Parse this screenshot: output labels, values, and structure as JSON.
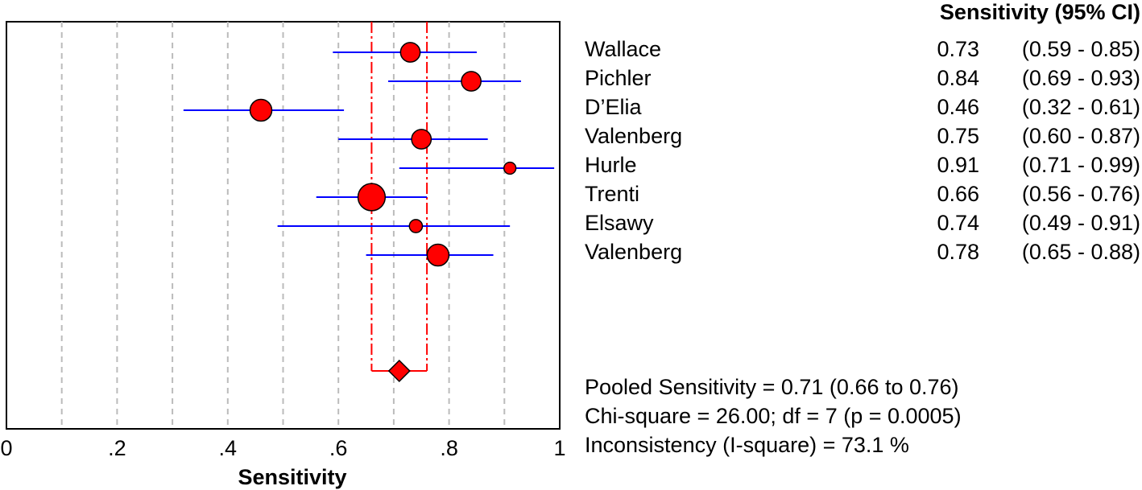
{
  "chart_data": {
    "type": "forest",
    "xlabel": "Sensitivity",
    "xlim": [
      0,
      1
    ],
    "x_ticks": [
      0,
      0.2,
      0.4,
      0.6,
      0.8,
      1
    ],
    "x_tick_labels": [
      "0",
      ".2",
      ".4",
      ".6",
      ".8",
      "1"
    ],
    "gridlines": [
      0.1,
      0.2,
      0.3,
      0.4,
      0.5,
      0.6,
      0.7,
      0.8,
      0.9
    ],
    "colors": {
      "point": "#ff0000",
      "ci_line": "#0000ff",
      "pooled": "#ff0000",
      "grid": "#bbbbbb"
    },
    "studies": [
      {
        "name": "Wallace",
        "estimate": 0.73,
        "lower": 0.59,
        "upper": 0.85,
        "estimate_label": "0.73",
        "ci_label": "(0.59 - 0.85)",
        "weight": 0.9
      },
      {
        "name": "Pichler",
        "estimate": 0.84,
        "lower": 0.69,
        "upper": 0.93,
        "estimate_label": "0.84",
        "ci_label": "(0.69 - 0.93)",
        "weight": 0.9
      },
      {
        "name": "D’Elia",
        "estimate": 0.46,
        "lower": 0.32,
        "upper": 0.61,
        "estimate_label": "0.46",
        "ci_label": "(0.32 - 0.61)",
        "weight": 1.0
      },
      {
        "name": "Valenberg",
        "estimate": 0.75,
        "lower": 0.6,
        "upper": 0.87,
        "estimate_label": "0.75",
        "ci_label": "(0.60 - 0.87)",
        "weight": 0.9
      },
      {
        "name": "Hurle",
        "estimate": 0.91,
        "lower": 0.71,
        "upper": 0.99,
        "estimate_label": "0.91",
        "ci_label": "(0.71 - 0.99)",
        "weight": 0.55
      },
      {
        "name": "Trenti",
        "estimate": 0.66,
        "lower": 0.56,
        "upper": 0.76,
        "estimate_label": "0.66",
        "ci_label": "(0.56 - 0.76)",
        "weight": 1.25
      },
      {
        "name": "Elsawy",
        "estimate": 0.74,
        "lower": 0.49,
        "upper": 0.91,
        "estimate_label": "0.74",
        "ci_label": "(0.49 - 0.91)",
        "weight": 0.6
      },
      {
        "name": "Valenberg",
        "estimate": 0.78,
        "lower": 0.65,
        "upper": 0.88,
        "estimate_label": "0.78",
        "ci_label": "(0.65 - 0.88)",
        "weight": 1.0
      }
    ],
    "pooled": {
      "estimate": 0.71,
      "lower": 0.66,
      "upper": 0.76
    }
  },
  "table": {
    "header": "Sensitivity (95% CI)"
  },
  "summary": {
    "pooled": "Pooled Sensitivity = 0.71 (0.66 to 0.76)",
    "chi_square": "Chi-square = 26.00; df =  7 (p = 0.0005)",
    "inconsistency": "Inconsistency (I-square) = 73.1 %"
  }
}
